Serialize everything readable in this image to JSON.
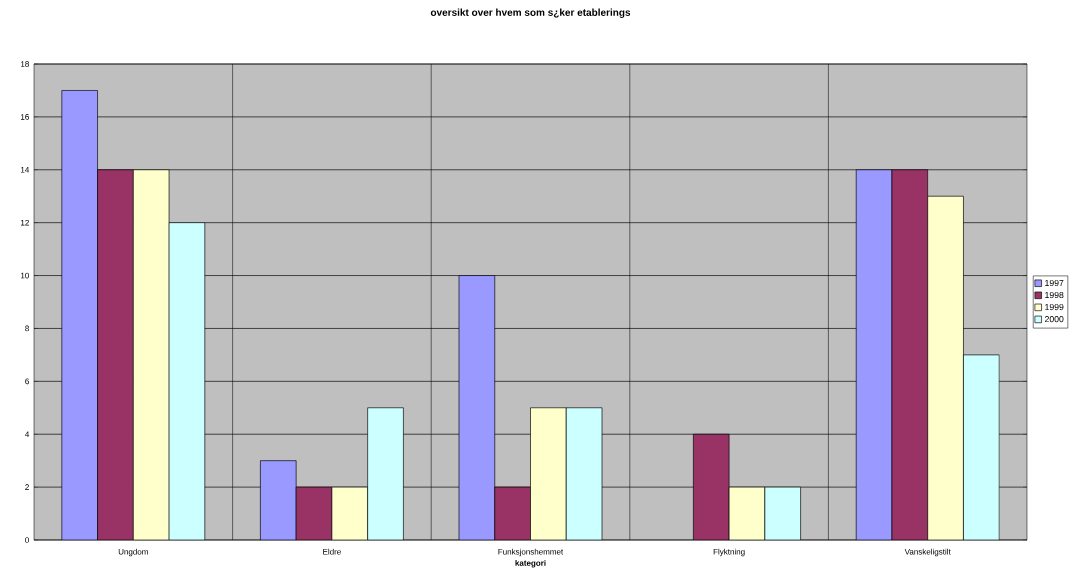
{
  "chart_data": {
    "type": "bar",
    "title": "oversikt over hvem som s¿ker etablerings",
    "xlabel": "kategori",
    "categories": [
      "Ungdom",
      "Eldre",
      "Funksjonshemmet",
      "Flyktning",
      "Vanskeligstilt"
    ],
    "series": [
      {
        "name": "1997",
        "color": "#9999ff",
        "values": [
          17,
          3,
          10,
          null,
          14
        ]
      },
      {
        "name": "1998",
        "color": "#993366",
        "values": [
          14,
          2,
          2,
          4,
          14
        ]
      },
      {
        "name": "1999",
        "color": "#ffffcc",
        "values": [
          14,
          2,
          5,
          2,
          13
        ]
      },
      {
        "name": "2000",
        "color": "#ccffff",
        "values": [
          12,
          5,
          5,
          2,
          7
        ]
      }
    ],
    "ylim": [
      0,
      18
    ],
    "yticks": [
      0,
      2,
      4,
      6,
      8,
      10,
      12,
      14,
      16,
      18
    ],
    "grid": true,
    "legend": "right"
  }
}
